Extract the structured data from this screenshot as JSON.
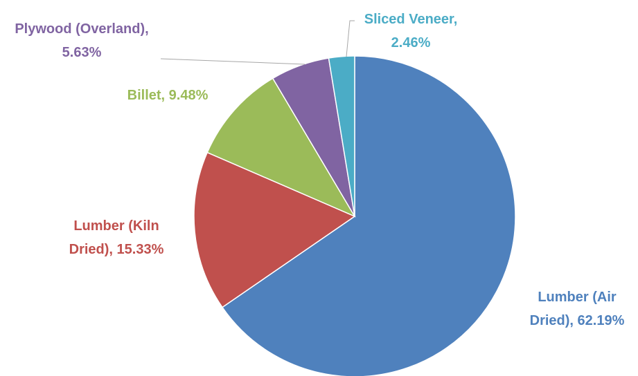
{
  "chart_data": {
    "type": "pie",
    "values": [
      62.19,
      15.33,
      9.48,
      5.63,
      2.46
    ],
    "value_labels": [
      "Lumber (Air Dried), 62.19%",
      "Lumber (Kiln Dried), 15.33%",
      "Billet, 9.48%",
      "Plywood (Overland), 5.63%",
      "Sliced Veneer, 2.46%"
    ],
    "colors": [
      "#4f81bd",
      "#c0504d",
      "#9bbb59",
      "#8064a2",
      "#4bacc6"
    ]
  }
}
